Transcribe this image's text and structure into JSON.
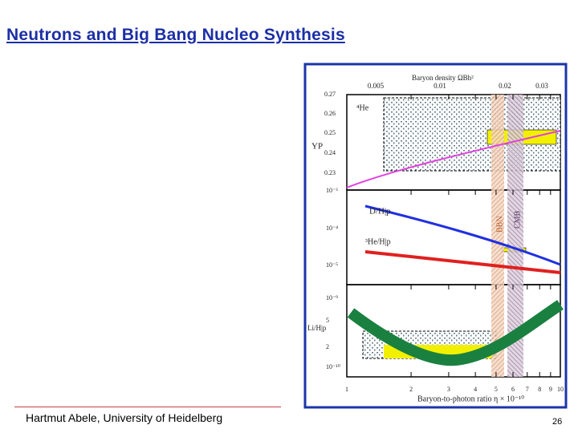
{
  "header": {
    "title": "Neutrons and Big Bang Nucleo Synthesis"
  },
  "figure": {
    "top_axis_title": "Baryon density ΩBh²",
    "top_axis_ticks": [
      "0.005",
      "0.01",
      "0.02",
      "0.03"
    ],
    "yp_label": "YP",
    "yp_ticks": [
      "0.27",
      "0.26",
      "0.25",
      "0.24",
      "0.23"
    ],
    "he4_label": "⁴He",
    "mid_ticks": [
      "10⁻³",
      "10⁻⁴",
      "10⁻⁵"
    ],
    "d_label": "D/H|p",
    "he3_label": "³He/H|p",
    "bottom_ticks": [
      "10⁻⁹",
      "5",
      "2",
      "10⁻¹⁰"
    ],
    "li_label": "Li/H|p",
    "bbn_label": "BBN",
    "cmb_label": "CMB",
    "x_ticks": [
      "1",
      "2",
      "3",
      "4",
      "5",
      "6",
      "7",
      "8",
      "9",
      "10"
    ],
    "x_title": "Baryon-to-photon ratio η × 10⁻¹⁰"
  },
  "footer": {
    "author": "Hartmut Abele, University of Heidelberg",
    "page": "26"
  }
}
